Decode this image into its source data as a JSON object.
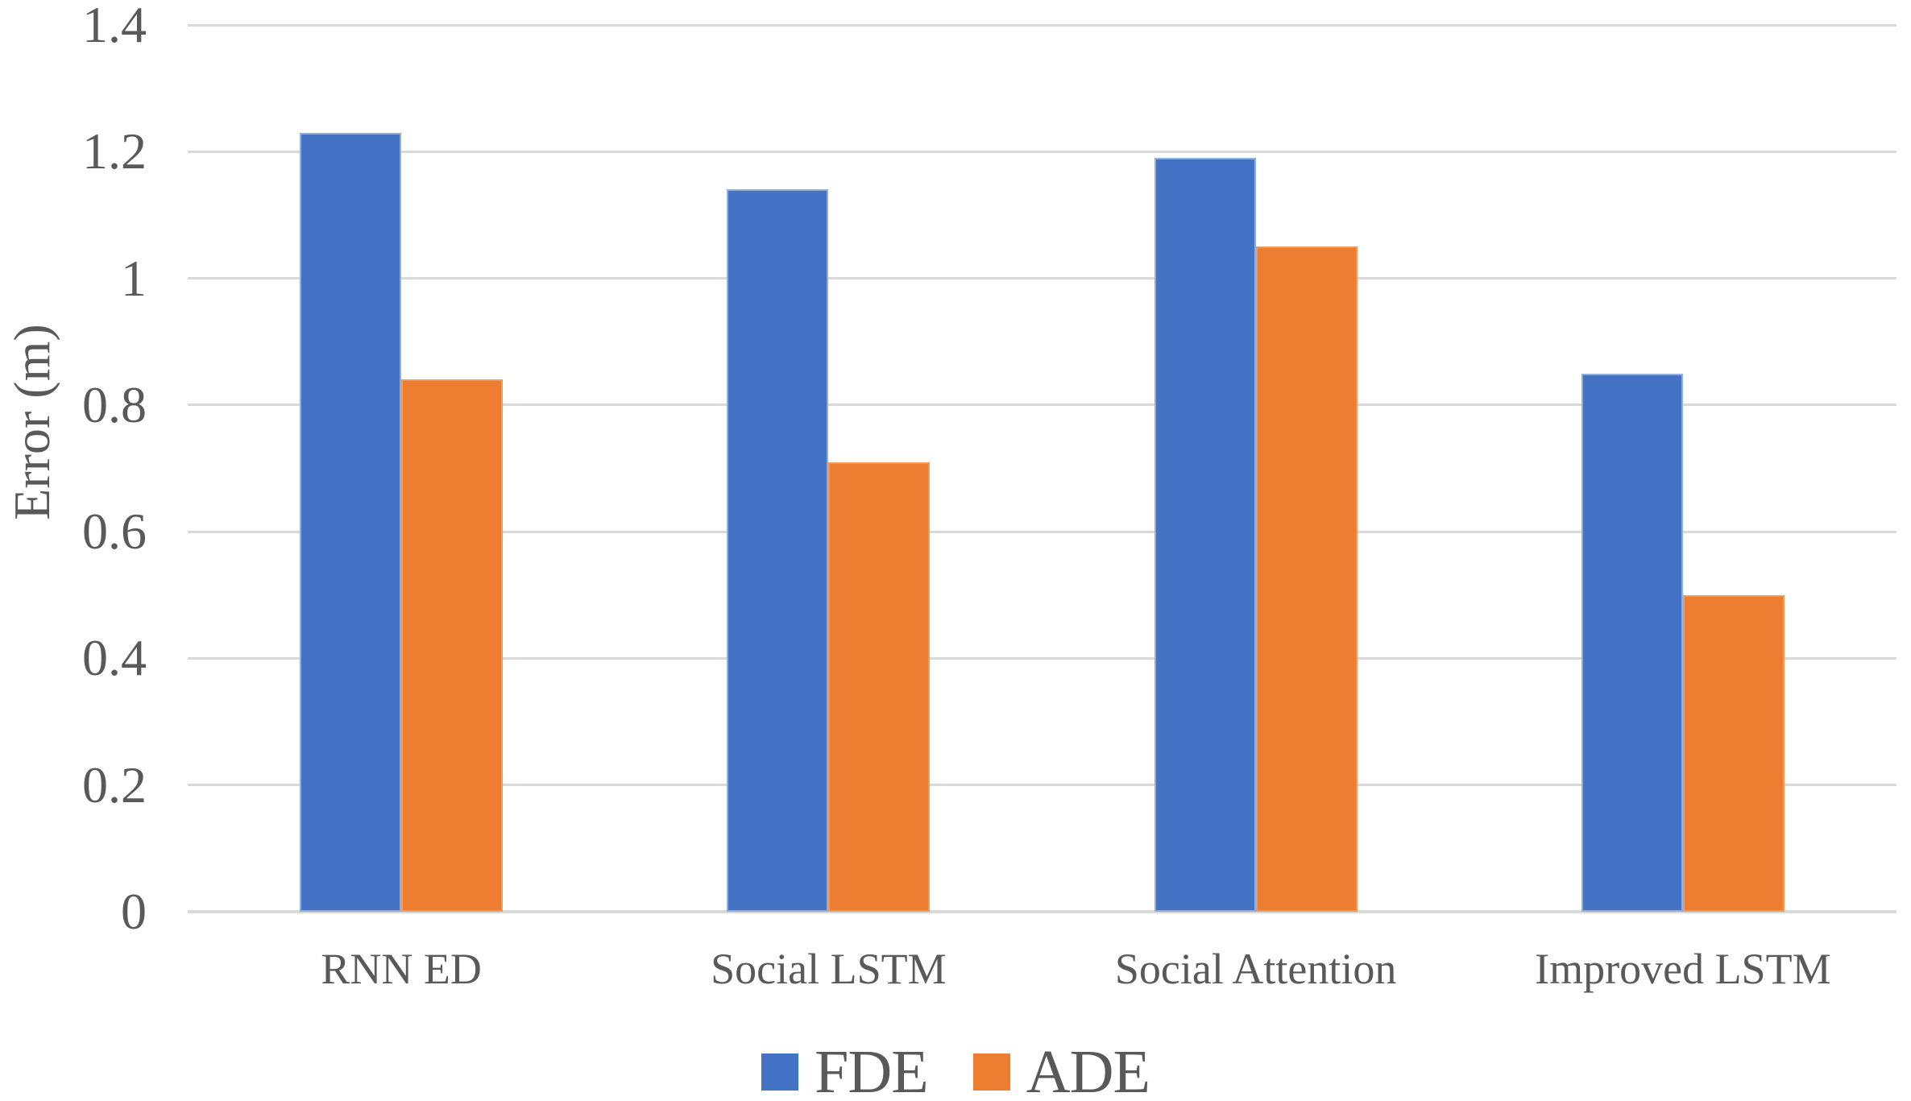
{
  "chart_data": {
    "type": "bar",
    "title": "",
    "categories": [
      "RNN ED",
      "Social LSTM",
      "Social Attention",
      "Improved LSTM"
    ],
    "series": [
      {
        "name": "FDE",
        "color": "#4472C4",
        "edge_color": "#8FAEDC",
        "values": [
          1.23,
          1.14,
          1.19,
          0.85
        ]
      },
      {
        "name": "ADE",
        "color": "#ED7D31",
        "edge_color": "#F19A5C",
        "values": [
          0.84,
          0.71,
          1.05,
          0.5
        ]
      }
    ],
    "xlabel": "",
    "ylabel": "Error (m)",
    "ylim": [
      0,
      1.4
    ],
    "yticks": [
      {
        "value": 0,
        "label": "0"
      },
      {
        "value": 0.2,
        "label": "0.2"
      },
      {
        "value": 0.4,
        "label": "0.4"
      },
      {
        "value": 0.6,
        "label": "0.6"
      },
      {
        "value": 0.8,
        "label": "0.8"
      },
      {
        "value": 1,
        "label": "1"
      },
      {
        "value": 1.2,
        "label": "1.2"
      },
      {
        "value": 1.4,
        "label": "1.4"
      }
    ],
    "grid": true,
    "legend_position": "bottom"
  },
  "legend": {
    "items": [
      {
        "label": "FDE",
        "color": "#4472C4"
      },
      {
        "label": "ADE",
        "color": "#ED7D31"
      }
    ]
  },
  "colors": {
    "background": "#FFFFFF",
    "text": "#595959",
    "gridline": "#D9D9D9",
    "axis_line": "#D9D9D9",
    "series_fde": "#4472C4",
    "series_ade": "#ED7D31"
  }
}
